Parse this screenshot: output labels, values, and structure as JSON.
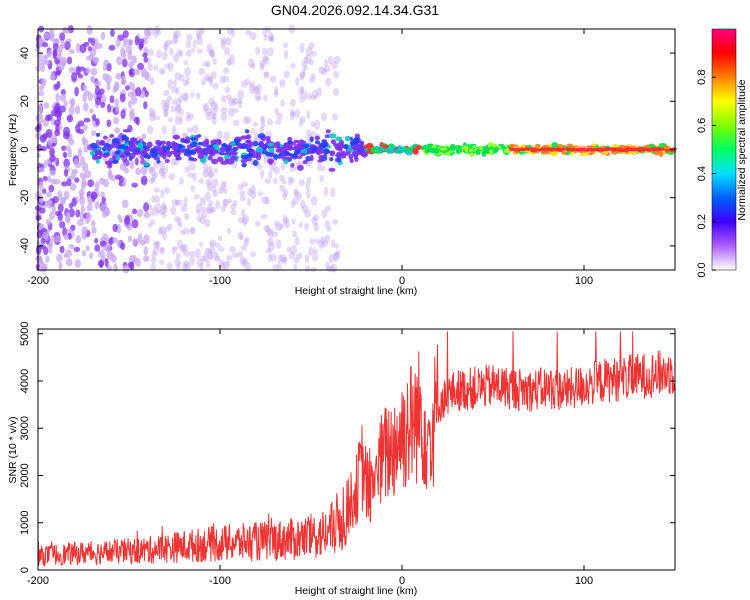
{
  "title": "GN04.2026.092.14.34.G31",
  "colors": {
    "snr_line": "#ee3333",
    "low_amp": "#c8a8f0",
    "mid_amp": "#8030f0",
    "cool_amp": "#00c8c8",
    "band_amp": "#00e050",
    "high_amp": "#ff3030"
  },
  "chart_data": [
    {
      "type": "heatmap",
      "name": "spectrogram",
      "xlabel": "Height of straight line (km)",
      "ylabel": "Frequency (Hz)",
      "xlim": [
        -200,
        150
      ],
      "ylim": [
        -50,
        50
      ],
      "xticks": [
        "-200",
        "-100",
        "0",
        "100"
      ],
      "xtick_values": [
        -200,
        -100,
        0,
        100
      ],
      "yticks": [
        "-40",
        "-20",
        "0",
        "20",
        "40"
      ],
      "ytick_values": [
        -40,
        -20,
        0,
        20,
        40
      ],
      "colorbar": {
        "label": "Normalized spectral amplitude",
        "range": [
          0,
          1
        ],
        "ticks": [
          "0.0",
          "0.2",
          "0.4",
          "0.6",
          "0.8"
        ],
        "tick_values": [
          0.0,
          0.2,
          0.4,
          0.6,
          0.8
        ],
        "colors": [
          "#ffffff",
          "#b060ff",
          "#4000ff",
          "#0060ff",
          "#00e0ff",
          "#00ff60",
          "#80ff00",
          "#ffff00",
          "#ff8000",
          "#ff0000",
          "#ff0080"
        ]
      },
      "ridge": {
        "description": "dominant spectral line near 0 Hz",
        "x_start": -170,
        "x_end": 150,
        "frequency": 0,
        "noise_region_end": -35
      }
    },
    {
      "type": "line",
      "name": "snr",
      "xlabel": "Height of straight line (km)",
      "ylabel": "SNR (10 * v/v)",
      "xlim": [
        -200,
        150
      ],
      "ylim": [
        0,
        5100
      ],
      "xticks": [
        "-200",
        "-100",
        "0",
        "100"
      ],
      "xtick_values": [
        -200,
        -100,
        0,
        100
      ],
      "yticks": [
        "0",
        "1000",
        "2000",
        "3000",
        "4000",
        "5000"
      ],
      "ytick_values": [
        0,
        1000,
        2000,
        3000,
        4000,
        5000
      ],
      "series": [
        {
          "name": "SNR",
          "x": [
            -200,
            -180,
            -160,
            -140,
            -120,
            -100,
            -80,
            -60,
            -50,
            -40,
            -35,
            -30,
            -25,
            -22,
            -20,
            -18,
            -15,
            -10,
            -5,
            0,
            5,
            10,
            15,
            20,
            25,
            30,
            40,
            50,
            60,
            70,
            80,
            90,
            100,
            110,
            120,
            130,
            140,
            150
          ],
          "values": [
            300,
            350,
            380,
            420,
            500,
            560,
            600,
            650,
            700,
            800,
            1000,
            1300,
            1700,
            2200,
            1900,
            1600,
            2000,
            2400,
            2600,
            2900,
            3100,
            3300,
            2800,
            3500,
            3700,
            3800,
            3850,
            3900,
            3850,
            3800,
            3850,
            3800,
            3900,
            4000,
            4050,
            4100,
            4150,
            4200
          ]
        }
      ]
    }
  ]
}
